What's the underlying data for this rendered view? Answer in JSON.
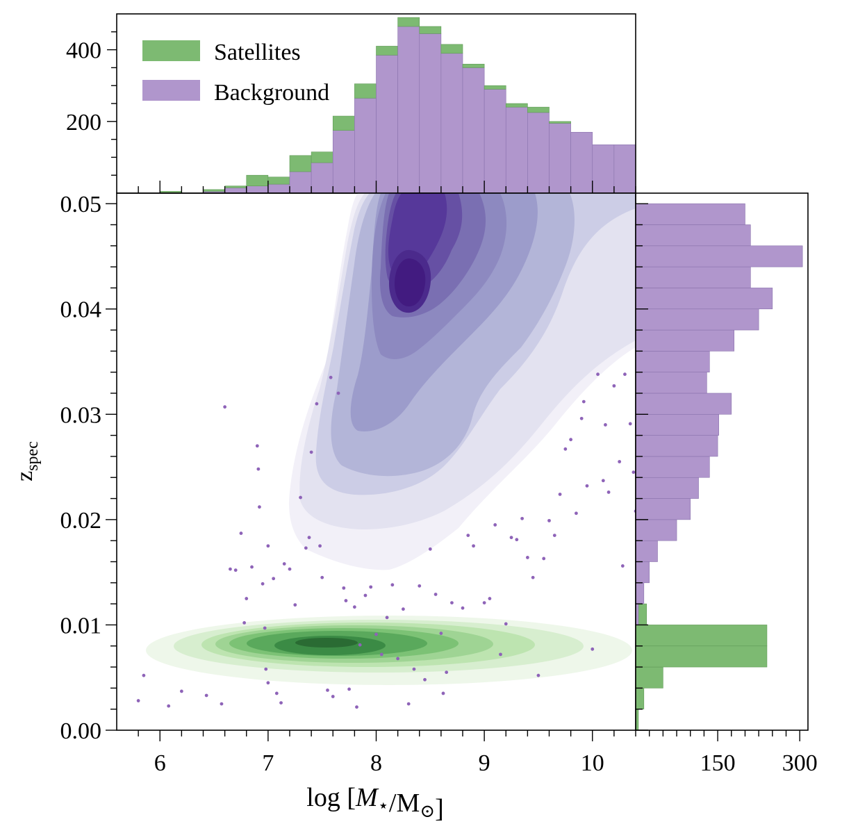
{
  "chart_data": [
    {
      "panel": "top-marginal",
      "type": "bar",
      "stacked": true,
      "x_bin_edges": [
        6.0,
        6.2,
        6.4,
        6.6,
        6.8,
        7.0,
        7.2,
        7.4,
        7.6,
        7.8,
        8.0,
        8.2,
        8.4,
        8.6,
        8.8,
        9.0,
        9.2,
        9.4,
        9.6,
        9.8,
        10.0,
        10.2,
        10.4
      ],
      "series": [
        {
          "name": "Background",
          "color": "#b096cc",
          "values": [
            0,
            0,
            5,
            15,
            20,
            25,
            60,
            85,
            175,
            265,
            385,
            465,
            445,
            390,
            350,
            290,
            240,
            225,
            195,
            170,
            135,
            135
          ]
        },
        {
          "name": "Satellites",
          "color": "#7dba72",
          "values": [
            5,
            0,
            5,
            5,
            30,
            20,
            45,
            30,
            40,
            40,
            25,
            25,
            20,
            25,
            10,
            10,
            10,
            15,
            5,
            0,
            0,
            0
          ]
        }
      ],
      "yticks": [
        200,
        400
      ],
      "ytick_labels": [
        "200",
        "400"
      ],
      "ylim": [
        0,
        500
      ],
      "legend": {
        "placement": "top-left",
        "entries": [
          {
            "label": "Satellites",
            "color": "#7dba72"
          },
          {
            "label": "Background",
            "color": "#b096cc"
          }
        ]
      }
    },
    {
      "panel": "main",
      "type": "scatter",
      "xlabel": "log [M⋆/M⊙]",
      "ylabel": "z_spec",
      "ylabel_main": "z",
      "ylabel_sub": "spec",
      "xlim": [
        5.6,
        10.4
      ],
      "ylim": [
        0.0,
        0.051
      ],
      "xticks": [
        6,
        7,
        8,
        9,
        10
      ],
      "xtick_labels": [
        "6",
        "7",
        "8",
        "9",
        "10"
      ],
      "yticks": [
        0.0,
        0.01,
        0.02,
        0.03,
        0.04,
        0.05
      ],
      "ytick_labels": [
        "0.00",
        "0.01",
        "0.02",
        "0.03",
        "0.04",
        "0.05"
      ],
      "background_kde_peak": {
        "x": 8.3,
        "y": 0.042
      },
      "satellites_kde_peak": {
        "x": 7.6,
        "y": 0.0083
      },
      "points": [
        [
          5.8,
          0.0028
        ],
        [
          5.85,
          0.0052
        ],
        [
          6.08,
          0.0023
        ],
        [
          6.2,
          0.0037
        ],
        [
          6.43,
          0.0033
        ],
        [
          6.57,
          0.0025
        ],
        [
          6.6,
          0.0307
        ],
        [
          6.65,
          0.0153
        ],
        [
          6.7,
          0.0152
        ],
        [
          6.75,
          0.0187
        ],
        [
          6.78,
          0.0102
        ],
        [
          6.8,
          0.0125
        ],
        [
          6.85,
          0.0155
        ],
        [
          6.9,
          0.027
        ],
        [
          6.91,
          0.0248
        ],
        [
          6.92,
          0.0212
        ],
        [
          6.95,
          0.0139
        ],
        [
          6.97,
          0.0097
        ],
        [
          6.98,
          0.0058
        ],
        [
          7.0,
          0.0045
        ],
        [
          7.0,
          0.0175
        ],
        [
          7.05,
          0.0144
        ],
        [
          7.08,
          0.0035
        ],
        [
          7.12,
          0.0026
        ],
        [
          7.15,
          0.0158
        ],
        [
          7.2,
          0.0153
        ],
        [
          7.25,
          0.0119
        ],
        [
          7.3,
          0.0221
        ],
        [
          7.35,
          0.0173
        ],
        [
          7.38,
          0.0183
        ],
        [
          7.4,
          0.0264
        ],
        [
          7.45,
          0.031
        ],
        [
          7.48,
          0.0175
        ],
        [
          7.5,
          0.0145
        ],
        [
          7.55,
          0.0038
        ],
        [
          7.58,
          0.0335
        ],
        [
          7.6,
          0.0032
        ],
        [
          7.65,
          0.032
        ],
        [
          7.7,
          0.0135
        ],
        [
          7.72,
          0.0123
        ],
        [
          7.75,
          0.0039
        ],
        [
          7.8,
          0.0117
        ],
        [
          7.82,
          0.0022
        ],
        [
          7.85,
          0.0081
        ],
        [
          7.9,
          0.0128
        ],
        [
          7.95,
          0.0136
        ],
        [
          8.0,
          0.0091
        ],
        [
          8.05,
          0.0072
        ],
        [
          8.1,
          0.0107
        ],
        [
          8.15,
          0.0138
        ],
        [
          8.2,
          0.0068
        ],
        [
          8.25,
          0.0115
        ],
        [
          8.3,
          0.0025
        ],
        [
          8.35,
          0.0058
        ],
        [
          8.4,
          0.0137
        ],
        [
          8.45,
          0.0048
        ],
        [
          8.5,
          0.0172
        ],
        [
          8.55,
          0.0129
        ],
        [
          8.6,
          0.0092
        ],
        [
          8.62,
          0.0035
        ],
        [
          8.65,
          0.0055
        ],
        [
          8.7,
          0.0121
        ],
        [
          8.8,
          0.0116
        ],
        [
          8.85,
          0.0185
        ],
        [
          8.9,
          0.0175
        ],
        [
          9.0,
          0.0121
        ],
        [
          9.05,
          0.0125
        ],
        [
          9.1,
          0.0195
        ],
        [
          9.15,
          0.0072
        ],
        [
          9.2,
          0.0101
        ],
        [
          9.25,
          0.0183
        ],
        [
          9.3,
          0.0181
        ],
        [
          9.35,
          0.0201
        ],
        [
          9.4,
          0.0164
        ],
        [
          9.45,
          0.0145
        ],
        [
          9.5,
          0.0052
        ],
        [
          9.55,
          0.0163
        ],
        [
          9.6,
          0.0199
        ],
        [
          9.65,
          0.0185
        ],
        [
          9.7,
          0.0224
        ],
        [
          9.75,
          0.0267
        ],
        [
          9.8,
          0.0276
        ],
        [
          9.85,
          0.0206
        ],
        [
          9.9,
          0.0296
        ],
        [
          9.92,
          0.0312
        ],
        [
          9.95,
          0.0232
        ],
        [
          10.0,
          0.0077
        ],
        [
          10.05,
          0.0338
        ],
        [
          10.1,
          0.0237
        ],
        [
          10.12,
          0.029
        ],
        [
          10.15,
          0.0226
        ],
        [
          10.2,
          0.0327
        ],
        [
          10.25,
          0.0255
        ],
        [
          10.28,
          0.0156
        ],
        [
          10.3,
          0.0338
        ],
        [
          10.35,
          0.0291
        ],
        [
          10.38,
          0.0245
        ],
        [
          10.4,
          0.0208
        ]
      ]
    },
    {
      "panel": "right-marginal",
      "type": "bar",
      "orientation": "horizontal",
      "y_bin_edges": [
        0.0,
        0.002,
        0.004,
        0.006,
        0.008,
        0.01,
        0.012,
        0.014,
        0.016,
        0.018,
        0.02,
        0.022,
        0.024,
        0.026,
        0.028,
        0.03,
        0.032,
        0.034,
        0.036,
        0.038,
        0.04,
        0.042,
        0.044,
        0.046,
        0.048,
        0.05
      ],
      "series": [
        {
          "name": "Satellites",
          "color": "#7dba72",
          "values": [
            5,
            15,
            50,
            240,
            240,
            20,
            0,
            0,
            0,
            0,
            0,
            0,
            0,
            0,
            0,
            0,
            0,
            0,
            0,
            0,
            0,
            0,
            0,
            0,
            0
          ]
        },
        {
          "name": "Background",
          "color": "#b096cc",
          "values": [
            0,
            0,
            0,
            0,
            0,
            5,
            15,
            25,
            40,
            75,
            100,
            115,
            135,
            150,
            152,
            175,
            130,
            135,
            180,
            225,
            250,
            210,
            305,
            210,
            200
          ]
        }
      ],
      "xticks": [
        150,
        300
      ],
      "xtick_labels": [
        "150",
        "300"
      ],
      "xlim": [
        0,
        315
      ]
    }
  ]
}
